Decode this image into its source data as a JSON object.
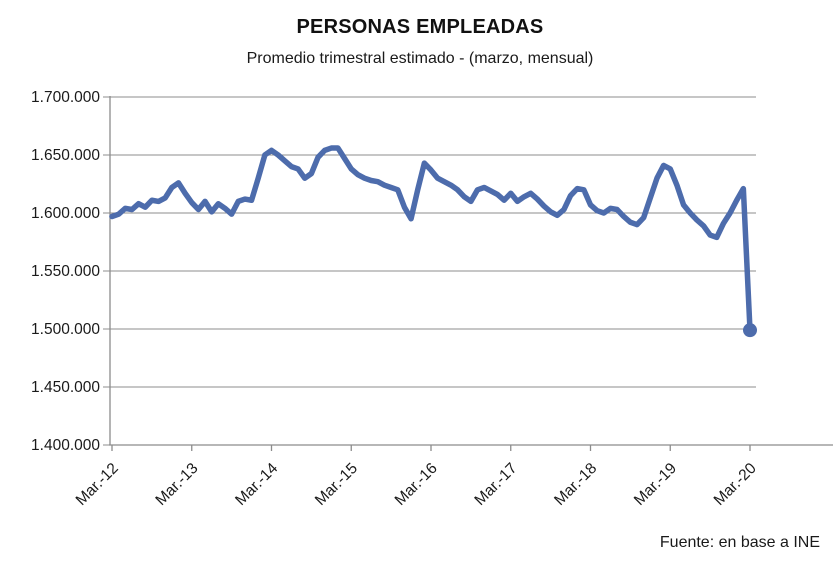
{
  "header": {
    "title": "PERSONAS EMPLEADAS",
    "subtitle": "Promedio trimestral estimado - (marzo, mensual)"
  },
  "footer": {
    "source": "Fuente: en base a INE"
  },
  "colors": {
    "line": "#4d6cac",
    "marker": "#4d6cac",
    "grid": "#8c8c8c",
    "axis": "#8c8c8c",
    "tick_text": "#1a1a1a",
    "background": "#ffffff"
  },
  "chart_data": {
    "type": "line",
    "title": "PERSONAS EMPLEADAS",
    "subtitle": "Promedio trimestral estimado - (marzo, mensual)",
    "source": "Fuente: en base a INE",
    "legend": "none",
    "grid": "horizontal",
    "ylim": [
      1400000,
      1700000
    ],
    "y_step": 50000,
    "y_tick_labels": [
      "1.700.000",
      "1.650.000",
      "1.600.000",
      "1.550.000",
      "1.500.000",
      "1.450.000",
      "1.400.000"
    ],
    "x_tick_labels": [
      "Mar.-12",
      "Mar.-13",
      "Mar.-14",
      "Mar.-15",
      "Mar.-16",
      "Mar.-17",
      "Mar.-18",
      "Mar.-19",
      "Mar.-20"
    ],
    "x_tick_every": 12,
    "end_marker": true,
    "x": [
      "2012-03",
      "2012-04",
      "2012-05",
      "2012-06",
      "2012-07",
      "2012-08",
      "2012-09",
      "2012-10",
      "2012-11",
      "2012-12",
      "2013-01",
      "2013-02",
      "2013-03",
      "2013-04",
      "2013-05",
      "2013-06",
      "2013-07",
      "2013-08",
      "2013-09",
      "2013-10",
      "2013-11",
      "2013-12",
      "2014-01",
      "2014-02",
      "2014-03",
      "2014-04",
      "2014-05",
      "2014-06",
      "2014-07",
      "2014-08",
      "2014-09",
      "2014-10",
      "2014-11",
      "2014-12",
      "2015-01",
      "2015-02",
      "2015-03",
      "2015-04",
      "2015-05",
      "2015-06",
      "2015-07",
      "2015-08",
      "2015-09",
      "2015-10",
      "2015-11",
      "2015-12",
      "2016-01",
      "2016-02",
      "2016-03",
      "2016-04",
      "2016-05",
      "2016-06",
      "2016-07",
      "2016-08",
      "2016-09",
      "2016-10",
      "2016-11",
      "2016-12",
      "2017-01",
      "2017-02",
      "2017-03",
      "2017-04",
      "2017-05",
      "2017-06",
      "2017-07",
      "2017-08",
      "2017-09",
      "2017-10",
      "2017-11",
      "2017-12",
      "2018-01",
      "2018-02",
      "2018-03",
      "2018-04",
      "2018-05",
      "2018-06",
      "2018-07",
      "2018-08",
      "2018-09",
      "2018-10",
      "2018-11",
      "2018-12",
      "2019-01",
      "2019-02",
      "2019-03",
      "2019-04",
      "2019-05",
      "2019-06",
      "2019-07",
      "2019-08",
      "2019-09",
      "2019-10",
      "2019-11",
      "2019-12",
      "2020-01",
      "2020-02",
      "2020-03"
    ],
    "series": [
      {
        "name": "Personas empleadas",
        "values": [
          1597000,
          1599000,
          1604000,
          1603000,
          1608000,
          1605000,
          1611000,
          1610000,
          1613000,
          1622000,
          1626000,
          1617000,
          1609000,
          1603000,
          1610000,
          1601000,
          1608000,
          1604000,
          1599000,
          1610000,
          1612000,
          1611000,
          1630000,
          1650000,
          1654000,
          1650000,
          1645000,
          1640000,
          1638000,
          1630000,
          1634000,
          1648000,
          1654000,
          1656000,
          1656000,
          1647000,
          1638000,
          1633000,
          1630000,
          1628000,
          1627000,
          1624000,
          1622000,
          1620000,
          1605000,
          1595000,
          1620000,
          1643000,
          1637000,
          1630000,
          1627000,
          1624000,
          1620000,
          1614000,
          1610000,
          1620000,
          1622000,
          1619000,
          1616000,
          1611000,
          1617000,
          1610000,
          1614000,
          1617000,
          1612000,
          1606000,
          1601000,
          1598000,
          1603000,
          1615000,
          1621000,
          1620000,
          1607000,
          1602000,
          1600000,
          1604000,
          1603000,
          1597000,
          1592000,
          1590000,
          1596000,
          1613000,
          1630000,
          1641000,
          1638000,
          1624000,
          1607000,
          1600000,
          1594000,
          1589000,
          1581000,
          1579000,
          1591000,
          1600000,
          1611000,
          1621000,
          1499000
        ]
      }
    ]
  }
}
